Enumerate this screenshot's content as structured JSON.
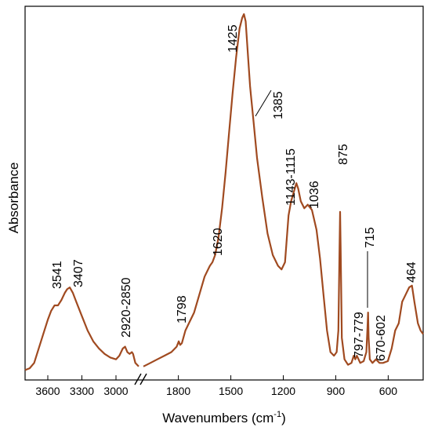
{
  "chart_data": {
    "type": "line",
    "xlabel": "Wavenumbers (cm",
    "xlabel_sup": "-1",
    "xlabel_close": ")",
    "ylabel": "Absorbance",
    "x_reversed": true,
    "axis_break": {
      "from": 2800,
      "to": 2000
    },
    "xlim_high": [
      3800,
      2800
    ],
    "xlim_low": [
      2000,
      400
    ],
    "ylim": [
      0,
      1
    ],
    "grid": false,
    "line_color": "#a04a20",
    "x_ticks": [
      {
        "value": 3600,
        "label": "3600"
      },
      {
        "value": 3300,
        "label": "3300"
      },
      {
        "value": 3000,
        "label": "3000"
      },
      {
        "value": 1800,
        "label": "1800"
      },
      {
        "value": 1500,
        "label": "1500"
      },
      {
        "value": 1200,
        "label": "1200"
      },
      {
        "value": 900,
        "label": "900"
      },
      {
        "value": 600,
        "label": "600"
      }
    ],
    "series": [
      {
        "segment": "high",
        "points": [
          [
            3800,
            0.01
          ],
          [
            3760,
            0.015
          ],
          [
            3720,
            0.03
          ],
          [
            3680,
            0.07
          ],
          [
            3640,
            0.11
          ],
          [
            3600,
            0.15
          ],
          [
            3570,
            0.175
          ],
          [
            3541,
            0.19
          ],
          [
            3510,
            0.19
          ],
          [
            3480,
            0.205
          ],
          [
            3450,
            0.225
          ],
          [
            3430,
            0.235
          ],
          [
            3407,
            0.24
          ],
          [
            3380,
            0.225
          ],
          [
            3350,
            0.2
          ],
          [
            3300,
            0.16
          ],
          [
            3250,
            0.12
          ],
          [
            3200,
            0.09
          ],
          [
            3150,
            0.07
          ],
          [
            3100,
            0.055
          ],
          [
            3050,
            0.045
          ],
          [
            3000,
            0.04
          ],
          [
            2970,
            0.05
          ],
          [
            2940,
            0.07
          ],
          [
            2920,
            0.075
          ],
          [
            2900,
            0.06
          ],
          [
            2880,
            0.055
          ],
          [
            2860,
            0.06
          ],
          [
            2850,
            0.055
          ],
          [
            2830,
            0.03
          ],
          [
            2800,
            0.02
          ]
        ]
      },
      {
        "segment": "low",
        "points": [
          [
            2000,
            0.02
          ],
          [
            1960,
            0.03
          ],
          [
            1920,
            0.04
          ],
          [
            1880,
            0.05
          ],
          [
            1840,
            0.06
          ],
          [
            1810,
            0.075
          ],
          [
            1798,
            0.09
          ],
          [
            1790,
            0.08
          ],
          [
            1780,
            0.085
          ],
          [
            1760,
            0.12
          ],
          [
            1740,
            0.14
          ],
          [
            1710,
            0.17
          ],
          [
            1680,
            0.22
          ],
          [
            1650,
            0.27
          ],
          [
            1620,
            0.3
          ],
          [
            1605,
            0.31
          ],
          [
            1590,
            0.33
          ],
          [
            1570,
            0.38
          ],
          [
            1550,
            0.46
          ],
          [
            1530,
            0.56
          ],
          [
            1510,
            0.67
          ],
          [
            1490,
            0.78
          ],
          [
            1470,
            0.88
          ],
          [
            1450,
            0.96
          ],
          [
            1435,
            0.99
          ],
          [
            1425,
            1.0
          ],
          [
            1415,
            0.98
          ],
          [
            1400,
            0.87
          ],
          [
            1390,
            0.8
          ],
          [
            1385,
            0.775
          ],
          [
            1370,
            0.7
          ],
          [
            1350,
            0.6
          ],
          [
            1320,
            0.49
          ],
          [
            1290,
            0.39
          ],
          [
            1260,
            0.33
          ],
          [
            1230,
            0.3
          ],
          [
            1210,
            0.29
          ],
          [
            1190,
            0.31
          ],
          [
            1170,
            0.44
          ],
          [
            1155,
            0.48
          ],
          [
            1143,
            0.5
          ],
          [
            1125,
            0.53
          ],
          [
            1115,
            0.515
          ],
          [
            1100,
            0.48
          ],
          [
            1080,
            0.46
          ],
          [
            1060,
            0.47
          ],
          [
            1036,
            0.455
          ],
          [
            1010,
            0.4
          ],
          [
            990,
            0.32
          ],
          [
            970,
            0.22
          ],
          [
            950,
            0.12
          ],
          [
            930,
            0.06
          ],
          [
            910,
            0.05
          ],
          [
            895,
            0.06
          ],
          [
            885,
            0.12
          ],
          [
            878,
            0.35
          ],
          [
            875,
            0.45
          ],
          [
            872,
            0.35
          ],
          [
            865,
            0.1
          ],
          [
            850,
            0.04
          ],
          [
            830,
            0.025
          ],
          [
            810,
            0.03
          ],
          [
            797,
            0.05
          ],
          [
            788,
            0.04
          ],
          [
            779,
            0.05
          ],
          [
            760,
            0.03
          ],
          [
            740,
            0.035
          ],
          [
            725,
            0.06
          ],
          [
            718,
            0.13
          ],
          [
            715,
            0.17
          ],
          [
            712,
            0.1
          ],
          [
            705,
            0.04
          ],
          [
            690,
            0.03
          ],
          [
            670,
            0.04
          ],
          [
            650,
            0.03
          ],
          [
            630,
            0.03
          ],
          [
            602,
            0.035
          ],
          [
            580,
            0.07
          ],
          [
            560,
            0.12
          ],
          [
            540,
            0.14
          ],
          [
            520,
            0.2
          ],
          [
            500,
            0.22
          ],
          [
            480,
            0.24
          ],
          [
            464,
            0.245
          ],
          [
            450,
            0.2
          ],
          [
            430,
            0.14
          ],
          [
            415,
            0.12
          ],
          [
            400,
            0.11
          ]
        ]
      }
    ],
    "annotations": [
      {
        "label": "3541",
        "x": 3541
      },
      {
        "label": "3407",
        "x": 3407
      },
      {
        "label": "2920-2850",
        "x": 2880
      },
      {
        "label": "1798",
        "x": 1798
      },
      {
        "label": "1620",
        "x": 1620
      },
      {
        "label": "1425",
        "x": 1425
      },
      {
        "label": "1385",
        "x": 1385
      },
      {
        "label": "1143-1115",
        "x": 1130
      },
      {
        "label": "1036",
        "x": 1036
      },
      {
        "label": "875",
        "x": 875
      },
      {
        "label": "715",
        "x": 715
      },
      {
        "label": "797-779",
        "x": 788
      },
      {
        "label": "670-602",
        "x": 636
      },
      {
        "label": "464",
        "x": 464
      }
    ]
  }
}
